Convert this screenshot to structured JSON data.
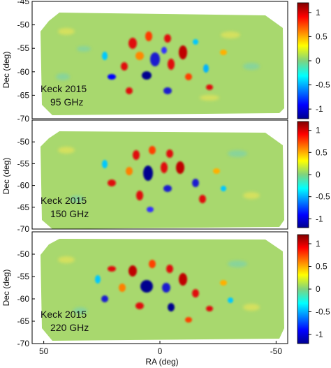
{
  "chart_data": [
    {
      "type": "heatmap",
      "label_lines": [
        "Keck 2015",
        "95 GHz"
      ],
      "ylabel": "Dec (deg)",
      "ylim": [
        -70,
        -45
      ],
      "yticks": [
        -45,
        -50,
        -55,
        -60,
        -65,
        -70
      ],
      "xlim": [
        55,
        -55
      ],
      "colorbar": {
        "range": [
          -1.2,
          1.2
        ],
        "ticks": [
          1,
          0.5,
          0,
          -0.5,
          -1
        ],
        "tick_labels": [
          "1",
          "0.5",
          "0",
          "-0.5",
          "-1"
        ]
      }
    },
    {
      "type": "heatmap",
      "label_lines": [
        "Keck 2015",
        "150 GHz"
      ],
      "ylabel": "Dec (deg)",
      "ylim": [
        -70,
        -45
      ],
      "yticks": [
        -50,
        -55,
        -60,
        -65,
        -70
      ],
      "xlim": [
        55,
        -55
      ],
      "colorbar": {
        "range": [
          -1.2,
          1.2
        ],
        "ticks": [
          1,
          0.5,
          0,
          -0.5,
          -1
        ],
        "tick_labels": [
          "1",
          "0.5",
          "0",
          "-0.5",
          "-1"
        ]
      }
    },
    {
      "type": "heatmap",
      "label_lines": [
        "Keck 2015",
        "220 GHz"
      ],
      "ylabel": "Dec (deg)",
      "xlabel": "RA (deg)",
      "ylim": [
        -70,
        -45
      ],
      "yticks": [
        -50,
        -55,
        -60,
        -65,
        -70
      ],
      "xlim": [
        55,
        -55
      ],
      "xticks": [
        50,
        0,
        -50
      ],
      "colorbar": {
        "range": [
          -1.2,
          1.2
        ],
        "ticks": [
          1,
          0.5,
          0,
          -0.5,
          -1
        ],
        "tick_labels": [
          "1",
          "0.5",
          "0",
          "-0.5",
          "-1"
        ]
      }
    }
  ],
  "colors": {
    "colormap": [
      "#00008f",
      "#0000ff",
      "#00ffff",
      "#7fd37f",
      "#ffff00",
      "#ff0000",
      "#800000"
    ],
    "field_base": "#a8d86e",
    "background": "#ffffff"
  }
}
